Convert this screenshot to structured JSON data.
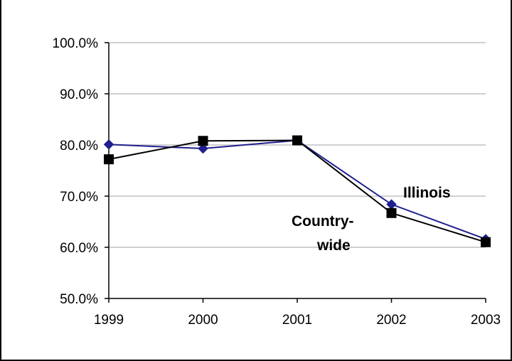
{
  "chart_data": {
    "type": "line",
    "x": [
      "1999",
      "2000",
      "2001",
      "2002",
      "2003"
    ],
    "ylim": [
      0.5,
      1.0
    ],
    "yticks": [
      0.5,
      0.6,
      0.7,
      0.8,
      0.9,
      1.0
    ],
    "ytick_labels": [
      "50.0%",
      "60.0%",
      "70.0%",
      "80.0%",
      "90.0%",
      "100.0%"
    ],
    "grid": "horizontal",
    "series": [
      {
        "name": "Illinois",
        "values": [
          0.801,
          0.793,
          0.809,
          0.684,
          0.616
        ],
        "color": "#1f1f8f",
        "marker": "diamond"
      },
      {
        "name": "Country-wide",
        "label_lines": [
          "Country-",
          "wide"
        ],
        "values": [
          0.772,
          0.808,
          0.809,
          0.667,
          0.61
        ],
        "color": "#000000",
        "marker": "square"
      }
    ],
    "colors": {
      "grid": "#c0c0c0",
      "axis": "#000000"
    }
  }
}
